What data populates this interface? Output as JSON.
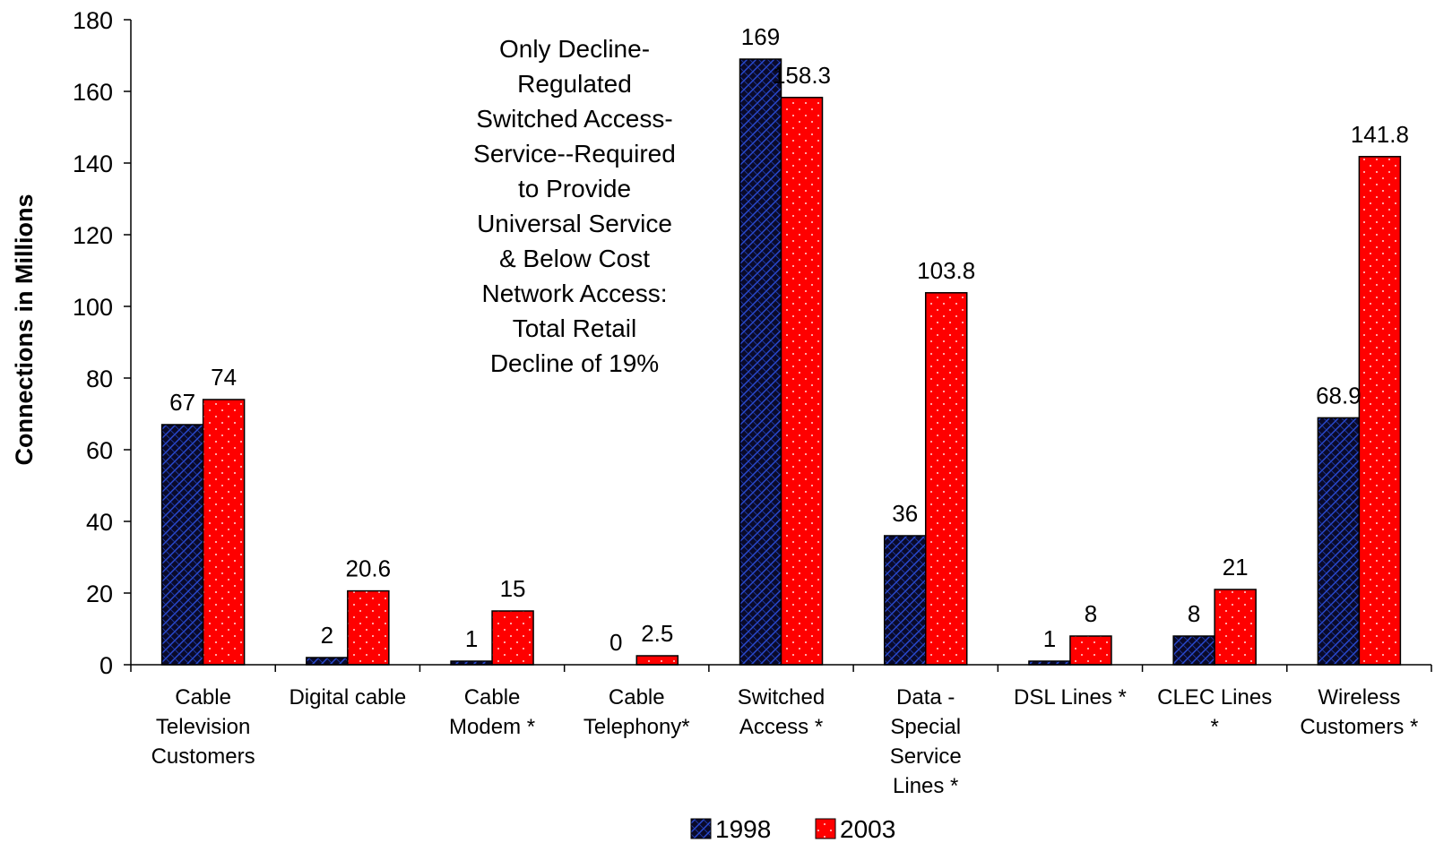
{
  "chart_data": {
    "type": "bar",
    "ylabel": "Connections in Millions",
    "ylim": [
      0,
      180
    ],
    "ytick_step": 20,
    "yticks": [
      "0",
      "20",
      "40",
      "60",
      "80",
      "100",
      "120",
      "140",
      "160",
      "180"
    ],
    "categories": [
      [
        "Cable",
        "Television",
        "Customers"
      ],
      [
        "Digital cable"
      ],
      [
        "Cable",
        "Modem *"
      ],
      [
        "Cable",
        "Telephony*"
      ],
      [
        "Switched",
        "Access *"
      ],
      [
        "Data -",
        "Special",
        "Service",
        "Lines *"
      ],
      [
        "DSL Lines *"
      ],
      [
        "CLEC Lines",
        "*"
      ],
      [
        "Wireless",
        "Customers *"
      ]
    ],
    "series": [
      {
        "name": "1998",
        "values": [
          67,
          2,
          1,
          0,
          169,
          36,
          1,
          8,
          68.9
        ],
        "labels": [
          "67",
          "2",
          "1",
          "0",
          "169",
          "36",
          "1",
          "8",
          "68.9"
        ],
        "color": "#0a0a2a",
        "hatch_color": "#2a4bd4"
      },
      {
        "name": "2003",
        "values": [
          74,
          20.6,
          15,
          2.5,
          158.3,
          103.8,
          8,
          21,
          141.8
        ],
        "labels": [
          "74",
          "20.6",
          "15",
          "2.5",
          "158.3",
          "103.8",
          "8",
          "21",
          "141.8"
        ],
        "color": "#ff0000",
        "dot_color": "#ffffff"
      }
    ],
    "annotation": [
      "Only Decline-",
      "Regulated",
      "Switched Access-",
      "Service--Required",
      "to Provide",
      "Universal Service",
      "& Below Cost",
      "Network Access:",
      "Total Retail",
      "Decline of 19%"
    ],
    "legend_position": "bottom",
    "grid": false
  }
}
